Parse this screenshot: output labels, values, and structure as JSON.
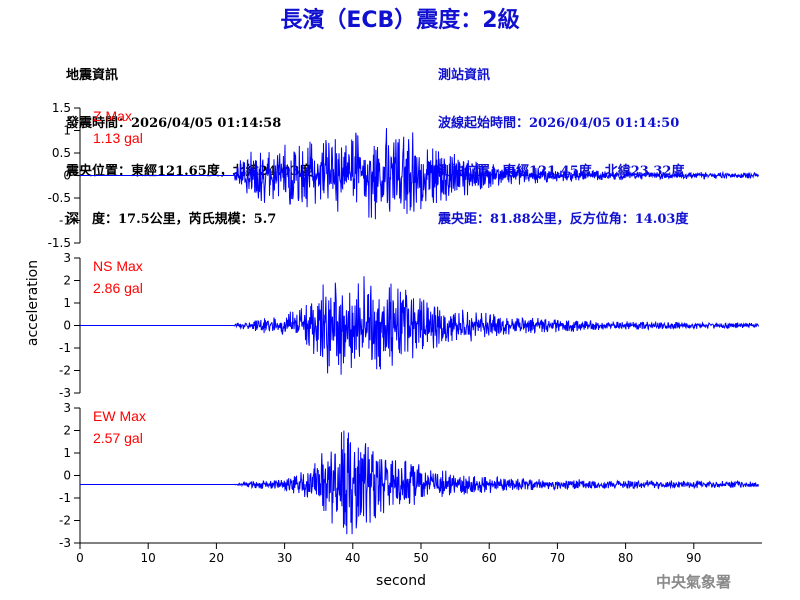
{
  "header": {
    "title": "長濱（ECB）震度：2級",
    "quake_lines": [
      "地震資訊",
      "發震時間：2026/04/05 01:14:58",
      "震央位置：東經121.65度，北緯24.03度",
      "深　度：17.5公里，芮氏規模：5.7"
    ],
    "station_lines": [
      "測站資訊",
      "波線起始時間：2026/04/05 01:14:50",
      "測站位置：東經121.45度，北緯23.32度",
      "震央距：81.88公里，反方位角：14.03度"
    ]
  },
  "footer": {
    "agency": "中央氣象署"
  },
  "chart_data": {
    "type": "line",
    "xlabel": "second",
    "ylabel": "acceleration",
    "xlim": [
      0,
      100
    ],
    "x_ticks": [
      0,
      10,
      20,
      30,
      40,
      50,
      60,
      70,
      80,
      90
    ],
    "line_color": "#0000ff",
    "label_color": "#ff0000",
    "panels": [
      {
        "name": "Z Max",
        "max_label": "1.13 gal",
        "ylim": [
          -1.5,
          1.5
        ],
        "y_ticks": [
          -1.5,
          -1,
          -0.5,
          0,
          0.5,
          1,
          1.5
        ],
        "y_tick_labels": [
          "-1.5",
          "-1",
          "-0.5",
          "0",
          "0.5",
          "1",
          "1.5"
        ],
        "baseline": 0,
        "peak": 1.13,
        "envelope": [
          [
            0,
            0
          ],
          [
            22.5,
            0
          ],
          [
            23,
            0.3
          ],
          [
            25,
            0.6
          ],
          [
            30,
            0.7
          ],
          [
            35,
            0.85
          ],
          [
            40,
            0.95
          ],
          [
            45,
            1.1
          ],
          [
            48,
            1.05
          ],
          [
            52,
            0.7
          ],
          [
            56,
            0.5
          ],
          [
            62,
            0.25
          ],
          [
            70,
            0.15
          ],
          [
            80,
            0.1
          ],
          [
            90,
            0.08
          ],
          [
            99.5,
            0.07
          ]
        ]
      },
      {
        "name": "NS Max",
        "max_label": "2.86 gal",
        "ylim": [
          -3,
          3
        ],
        "y_ticks": [
          -3,
          -2,
          -1,
          0,
          1,
          2,
          3
        ],
        "y_tick_labels": [
          "-3",
          "-2",
          "-1",
          "0",
          "1",
          "2",
          "3"
        ],
        "baseline": 0,
        "peak": 2.86,
        "envelope": [
          [
            0,
            0
          ],
          [
            22.5,
            0
          ],
          [
            23,
            0.15
          ],
          [
            30,
            0.5
          ],
          [
            34,
            1.2
          ],
          [
            37,
            2.7
          ],
          [
            40,
            2.5
          ],
          [
            44,
            2.2
          ],
          [
            48,
            1.7
          ],
          [
            52,
            1.0
          ],
          [
            58,
            0.7
          ],
          [
            62,
            0.45
          ],
          [
            70,
            0.3
          ],
          [
            80,
            0.2
          ],
          [
            90,
            0.15
          ],
          [
            99.5,
            0.12
          ]
        ]
      },
      {
        "name": "EW Max",
        "max_label": "2.57 gal",
        "ylim": [
          -3,
          3
        ],
        "y_ticks": [
          -3,
          -2,
          -1,
          0,
          1,
          2,
          3
        ],
        "y_tick_labels": [
          "-3",
          "-2",
          "-1",
          "0",
          "1",
          "2",
          "3"
        ],
        "baseline": -0.4,
        "peak": 2.57,
        "envelope": [
          [
            0,
            0
          ],
          [
            22.5,
            0
          ],
          [
            25,
            0.15
          ],
          [
            30,
            0.3
          ],
          [
            34,
            0.8
          ],
          [
            36,
            1.7
          ],
          [
            39,
            2.6
          ],
          [
            42,
            1.9
          ],
          [
            46,
            1.3
          ],
          [
            50,
            0.9
          ],
          [
            56,
            0.55
          ],
          [
            62,
            0.35
          ],
          [
            70,
            0.25
          ],
          [
            80,
            0.2
          ],
          [
            90,
            0.18
          ],
          [
            99.5,
            0.15
          ]
        ]
      }
    ]
  }
}
